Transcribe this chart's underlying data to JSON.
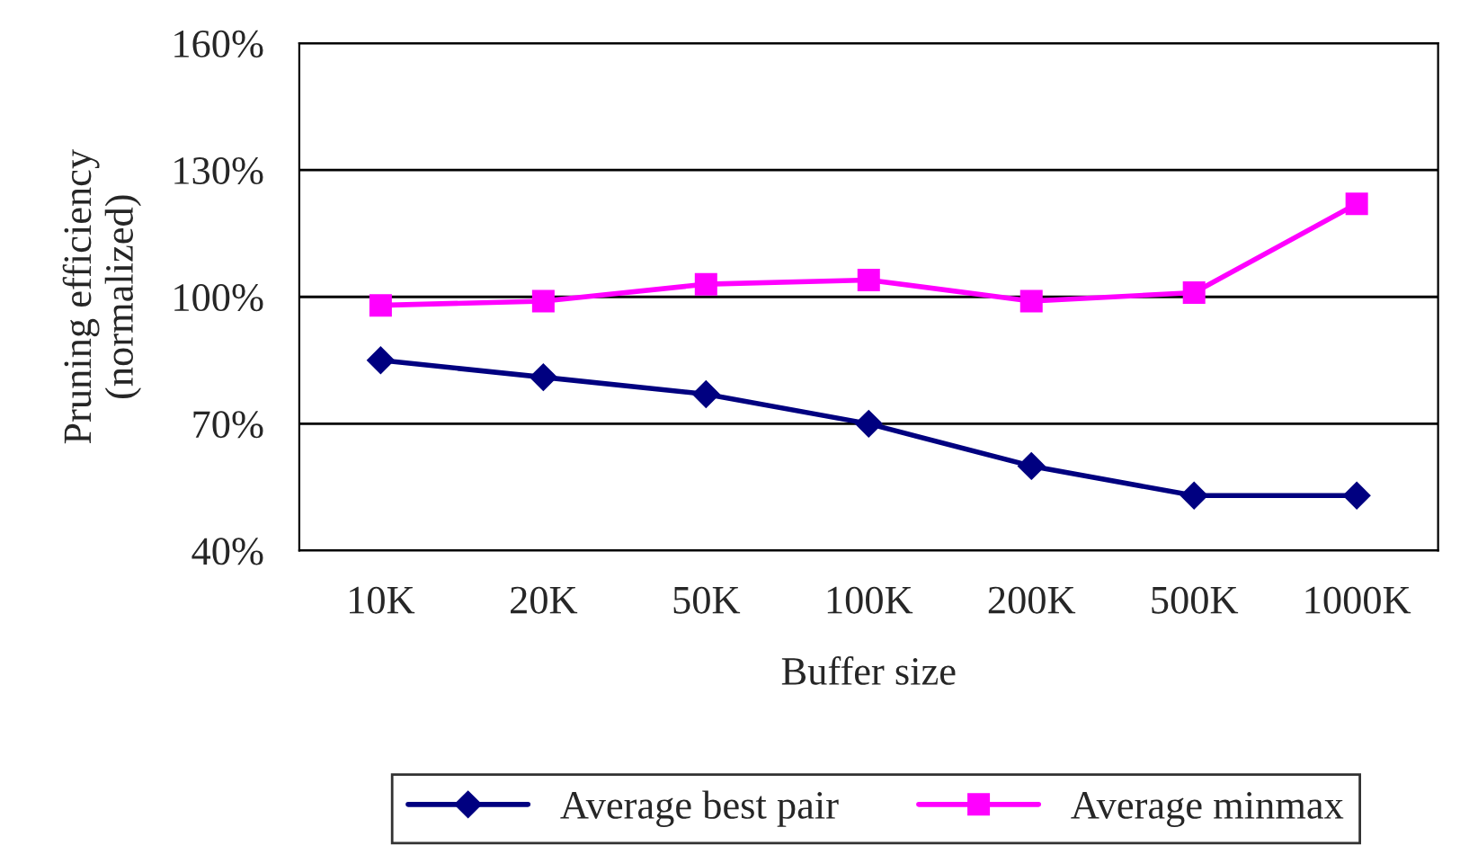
{
  "chart_data": {
    "type": "line",
    "xlabel": "Buffer size",
    "ylabel": "Pruning efficiency\n(normalized)",
    "categories": [
      "10K",
      "20K",
      "50K",
      "100K",
      "200K",
      "500K",
      "1000K"
    ],
    "series": [
      {
        "name": "Average best pair",
        "color": "#000080",
        "marker": "diamond",
        "values": [
          85,
          81,
          77,
          70,
          60,
          53,
          53
        ]
      },
      {
        "name": "Average minmax",
        "color": "#ff00ff",
        "marker": "square",
        "values": [
          98,
          99,
          103,
          104,
          99,
          101,
          122
        ]
      }
    ],
    "ylim": [
      40,
      160
    ],
    "yticks": [
      {
        "value": 40,
        "label": "40%"
      },
      {
        "value": 70,
        "label": "70%"
      },
      {
        "value": 100,
        "label": "100%"
      },
      {
        "value": 130,
        "label": "130%"
      },
      {
        "value": 160,
        "label": "160%"
      }
    ],
    "grid": "y",
    "legend": "bottom",
    "line_style": "solid"
  }
}
